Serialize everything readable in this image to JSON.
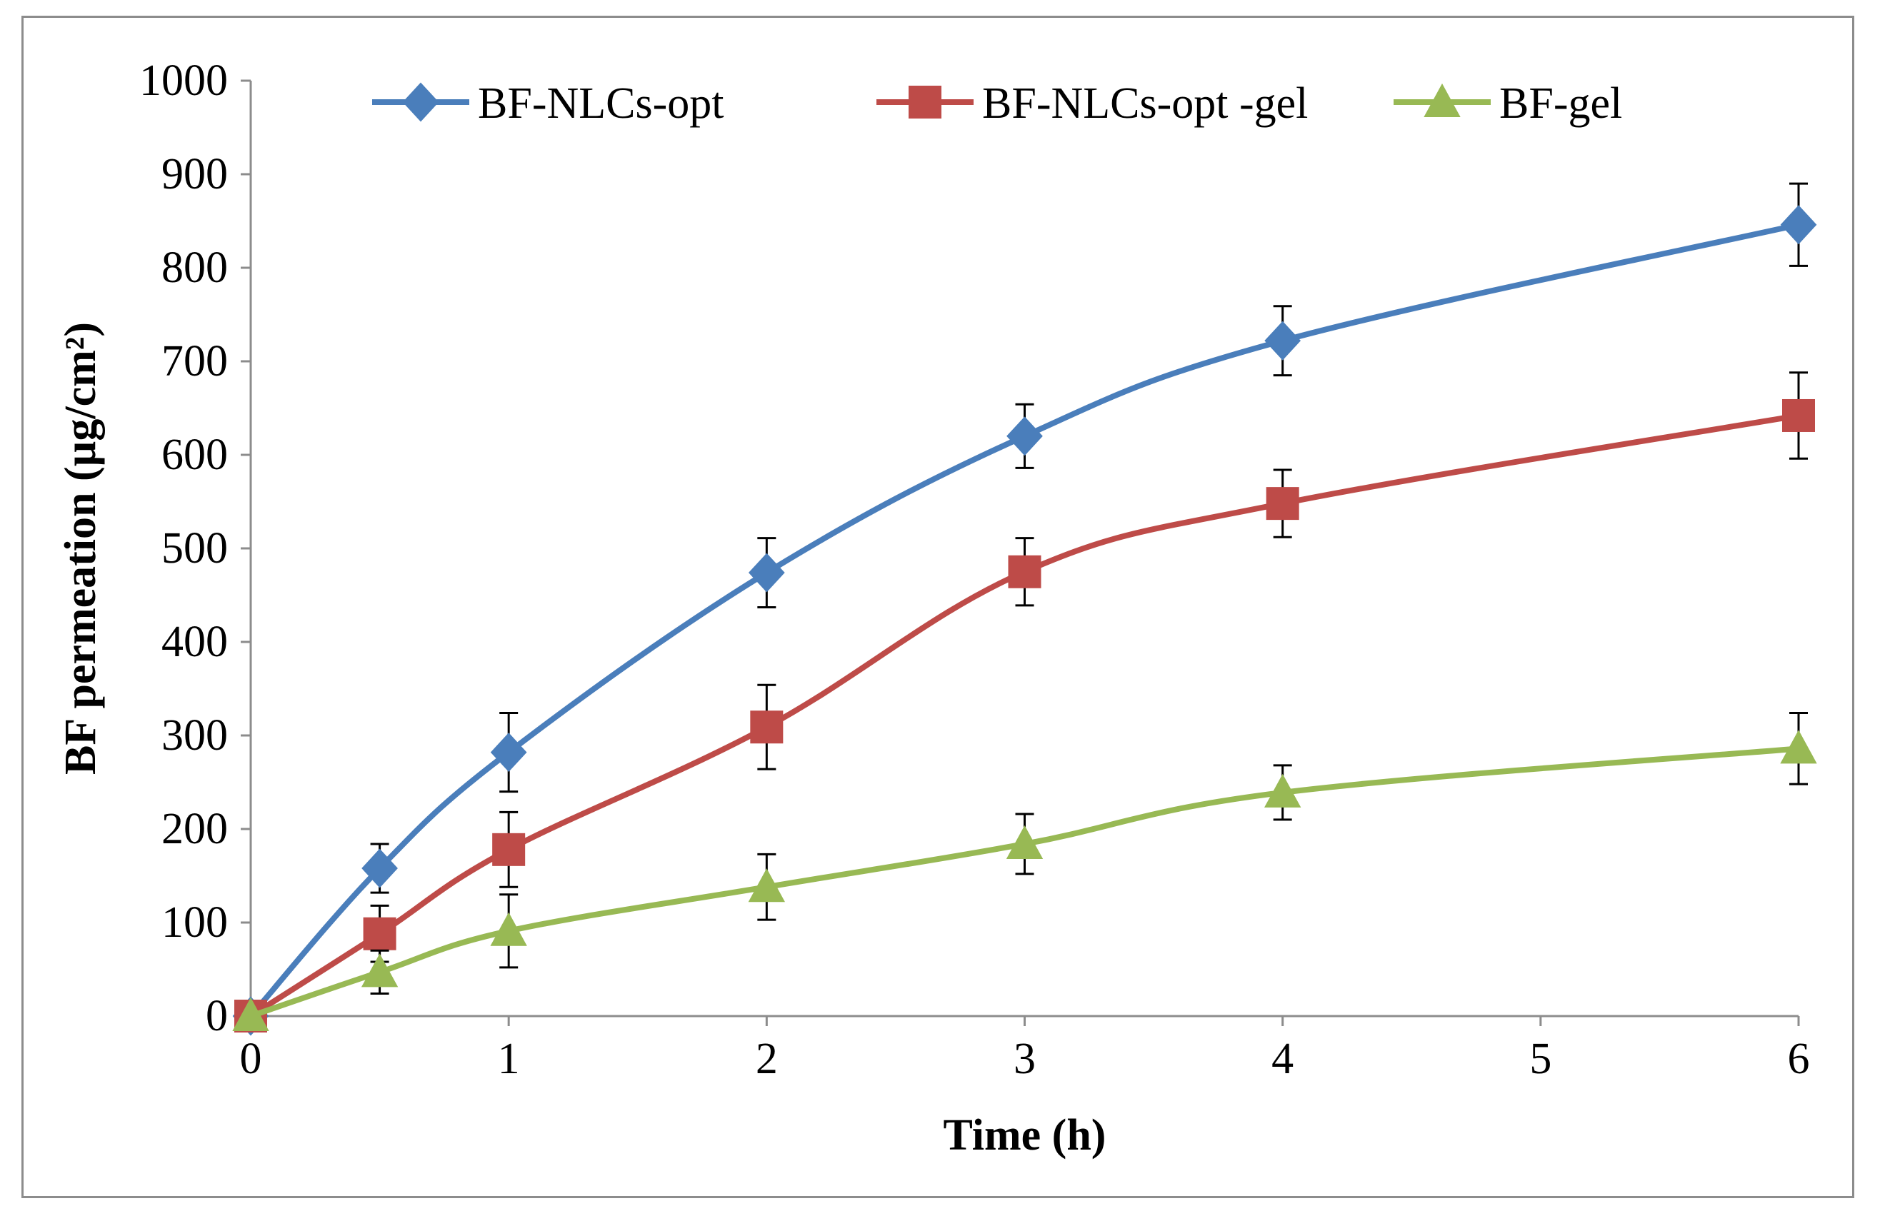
{
  "chart_data": {
    "type": "line",
    "title": "",
    "xlabel": "Time (h)",
    "ylabel": "BF  permeation (µg/cm²)",
    "xlim": [
      0,
      6
    ],
    "ylim": [
      0,
      1000
    ],
    "x_ticks": [
      0,
      1,
      2,
      3,
      4,
      5,
      6
    ],
    "y_ticks": [
      0,
      100,
      200,
      300,
      400,
      500,
      600,
      700,
      800,
      900,
      1000
    ],
    "x_tick_labels": [
      "0",
      "1",
      "2",
      "3",
      "4",
      "5",
      "6"
    ],
    "y_tick_labels": [
      "0",
      "100",
      "200",
      "300",
      "400",
      "500",
      "600",
      "700",
      "800",
      "900",
      "1000"
    ],
    "grid": false,
    "legend_position": "top",
    "series": [
      {
        "name": "BF-NLCs-opt",
        "color": "#4a7ebb",
        "marker": "diamond",
        "x": [
          0,
          0.5,
          1,
          2,
          3,
          4,
          6
        ],
        "y": [
          0,
          158,
          282,
          474,
          620,
          722,
          846
        ],
        "error": [
          0,
          26,
          42,
          37,
          34,
          37,
          44
        ]
      },
      {
        "name": "BF-NLCs-opt -gel",
        "color": "#be4b48",
        "marker": "square",
        "x": [
          0,
          0.5,
          1,
          2,
          3,
          4,
          6
        ],
        "y": [
          0,
          88,
          178,
          309,
          475,
          548,
          642
        ],
        "error": [
          0,
          30,
          40,
          45,
          36,
          36,
          46
        ]
      },
      {
        "name": "BF-gel",
        "color": "#98b954",
        "marker": "triangle",
        "x": [
          0,
          0.5,
          1,
          2,
          3,
          4,
          6
        ],
        "y": [
          0,
          47,
          91,
          138,
          184,
          239,
          286
        ],
        "error": [
          0,
          23,
          39,
          35,
          32,
          29,
          38
        ]
      }
    ]
  }
}
